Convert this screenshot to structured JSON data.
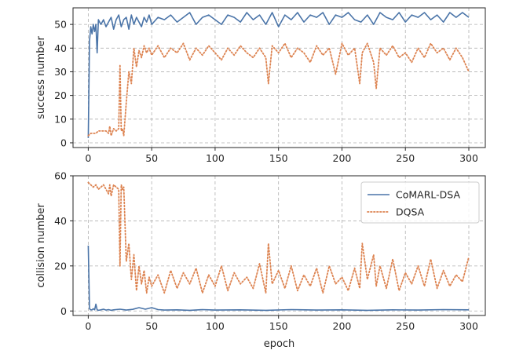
{
  "chart_data": [
    {
      "type": "line",
      "ylabel": "success number",
      "xlabel": "",
      "xlim": [
        -12,
        313
      ],
      "ylim": [
        -2,
        57
      ],
      "xticks": [
        0,
        50,
        100,
        150,
        200,
        250,
        300
      ],
      "yticks": [
        0,
        10,
        20,
        30,
        40,
        50
      ],
      "grid": true,
      "series": [
        {
          "name": "CoMARL-DSA",
          "color": "#4a74a8",
          "style": "solid",
          "x": [
            0,
            1,
            2,
            3,
            4,
            5,
            6,
            7,
            8,
            9,
            10,
            12,
            14,
            16,
            18,
            20,
            22,
            24,
            26,
            28,
            30,
            32,
            34,
            36,
            38,
            40,
            42,
            44,
            46,
            48,
            50,
            55,
            60,
            65,
            70,
            75,
            80,
            85,
            90,
            95,
            100,
            105,
            110,
            115,
            120,
            125,
            130,
            135,
            140,
            145,
            150,
            155,
            160,
            165,
            170,
            175,
            180,
            185,
            190,
            195,
            200,
            205,
            210,
            215,
            220,
            225,
            230,
            235,
            240,
            245,
            250,
            255,
            260,
            265,
            270,
            275,
            280,
            285,
            290,
            295,
            300
          ],
          "values": [
            2,
            43,
            49,
            46,
            50,
            47,
            50,
            38,
            52,
            51,
            50,
            52,
            49,
            51,
            53,
            48,
            52,
            54,
            49,
            52,
            53,
            48,
            54,
            50,
            53,
            51,
            49,
            53,
            51,
            54,
            50,
            53,
            52,
            54,
            51,
            53,
            55,
            50,
            53,
            54,
            52,
            50,
            54,
            53,
            51,
            55,
            52,
            54,
            50,
            55,
            49,
            54,
            52,
            55,
            51,
            54,
            53,
            55,
            50,
            54,
            53,
            55,
            52,
            51,
            54,
            50,
            55,
            53,
            52,
            55,
            51,
            54,
            53,
            55,
            52,
            54,
            51,
            55,
            53,
            55,
            53
          ]
        },
        {
          "name": "DQSA",
          "color": "#dd8452",
          "style": "dotted",
          "x": [
            0,
            2,
            4,
            6,
            8,
            10,
            12,
            14,
            16,
            17,
            18,
            20,
            22,
            24,
            25,
            26,
            27,
            28,
            30,
            32,
            34,
            36,
            38,
            40,
            42,
            44,
            46,
            48,
            50,
            55,
            60,
            65,
            70,
            75,
            80,
            85,
            90,
            95,
            100,
            105,
            110,
            115,
            120,
            125,
            130,
            135,
            140,
            142,
            145,
            150,
            155,
            160,
            165,
            170,
            175,
            180,
            185,
            190,
            195,
            200,
            205,
            210,
            214,
            216,
            220,
            225,
            227,
            230,
            235,
            240,
            245,
            250,
            255,
            260,
            265,
            270,
            275,
            280,
            285,
            290,
            295,
            300
          ],
          "values": [
            3,
            4,
            4,
            4,
            5,
            5,
            5,
            5,
            4,
            7,
            3,
            6,
            5,
            6,
            33,
            5,
            6,
            3,
            17,
            30,
            25,
            40,
            32,
            39,
            36,
            41,
            38,
            40,
            37,
            41,
            36,
            40,
            38,
            42,
            35,
            40,
            37,
            41,
            38,
            35,
            40,
            37,
            41,
            38,
            36,
            40,
            36,
            25,
            41,
            38,
            42,
            36,
            40,
            38,
            34,
            41,
            37,
            40,
            29,
            42,
            37,
            40,
            25,
            38,
            42,
            34,
            23,
            40,
            37,
            41,
            36,
            38,
            34,
            40,
            36,
            42,
            38,
            40,
            35,
            40,
            36,
            30
          ]
        }
      ]
    },
    {
      "type": "line",
      "ylabel": "collision number",
      "xlabel": "epoch",
      "xlim": [
        -12,
        313
      ],
      "ylim": [
        -2,
        60
      ],
      "xticks": [
        0,
        50,
        100,
        150,
        200,
        250,
        300
      ],
      "yticks": [
        0,
        20,
        40,
        60
      ],
      "grid": true,
      "legend": "upper-right",
      "series": [
        {
          "name": "CoMARL-DSA",
          "color": "#4a74a8",
          "style": "solid",
          "x": [
            0,
            1,
            2,
            3,
            4,
            5,
            6,
            7,
            8,
            10,
            12,
            14,
            16,
            18,
            20,
            25,
            30,
            35,
            40,
            45,
            50,
            55,
            60,
            70,
            80,
            90,
            100,
            120,
            140,
            160,
            180,
            200,
            220,
            240,
            260,
            280,
            300
          ],
          "values": [
            29,
            1,
            0.5,
            0.5,
            1,
            0.5,
            3,
            0.5,
            0.3,
            0.5,
            0.8,
            0.4,
            0.6,
            0.3,
            0.5,
            0.8,
            0.4,
            0.7,
            1.5,
            0.8,
            1.5,
            0.6,
            0.4,
            0.5,
            0.3,
            0.6,
            0.4,
            0.5,
            0.3,
            0.6,
            0.4,
            0.5,
            0.3,
            0.5,
            0.4,
            0.6,
            0.5
          ]
        },
        {
          "name": "DQSA",
          "color": "#dd8452",
          "style": "dotted",
          "x": [
            0,
            2,
            4,
            6,
            8,
            10,
            12,
            14,
            16,
            17,
            18,
            20,
            22,
            24,
            25,
            26,
            27,
            28,
            30,
            32,
            34,
            36,
            38,
            40,
            42,
            44,
            46,
            48,
            50,
            55,
            60,
            65,
            70,
            75,
            80,
            85,
            90,
            95,
            100,
            105,
            110,
            115,
            120,
            125,
            130,
            135,
            140,
            142,
            145,
            150,
            155,
            160,
            165,
            170,
            175,
            180,
            185,
            190,
            195,
            200,
            205,
            210,
            214,
            216,
            220,
            225,
            227,
            230,
            235,
            240,
            245,
            250,
            255,
            260,
            265,
            270,
            275,
            280,
            285,
            290,
            295,
            300
          ],
          "values": [
            57,
            56,
            55,
            56,
            54,
            55,
            56,
            54,
            52,
            56,
            51,
            56,
            55,
            54,
            20,
            56,
            54,
            55,
            22,
            30,
            14,
            25,
            9,
            20,
            12,
            18,
            8,
            15,
            11,
            16,
            8,
            18,
            10,
            17,
            12,
            19,
            8,
            16,
            11,
            20,
            9,
            17,
            12,
            15,
            10,
            21,
            8,
            30,
            12,
            18,
            10,
            20,
            9,
            16,
            11,
            19,
            8,
            20,
            12,
            15,
            9,
            19,
            10,
            30,
            14,
            25,
            11,
            20,
            10,
            23,
            9,
            17,
            12,
            20,
            11,
            23,
            10,
            18,
            11,
            16,
            13,
            24
          ]
        }
      ]
    }
  ]
}
